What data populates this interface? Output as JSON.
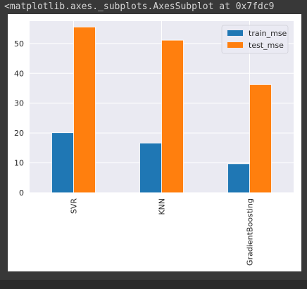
{
  "cell_output": {
    "repr_text": "<matplotlib.axes._subplots.AxesSubplot at 0x7fdc9"
  },
  "colors": {
    "train": "#1f77b4",
    "test": "#ff7f0e",
    "plot_bg": "#eaeaf2",
    "grid": "#ffffff"
  },
  "chart_data": {
    "type": "bar",
    "categories": [
      "SVR",
      "KNN",
      "GradientBoosting"
    ],
    "series": [
      {
        "name": "train_mse",
        "values": [
          20.1,
          16.6,
          9.7
        ]
      },
      {
        "name": "test_mse",
        "values": [
          55.5,
          51.1,
          36.2
        ]
      }
    ],
    "yticks": [
      "0",
      "10",
      "20",
      "30",
      "40",
      "50"
    ],
    "ylim": [
      0,
      57.5
    ],
    "grid": true,
    "legend_position": "top-right"
  }
}
